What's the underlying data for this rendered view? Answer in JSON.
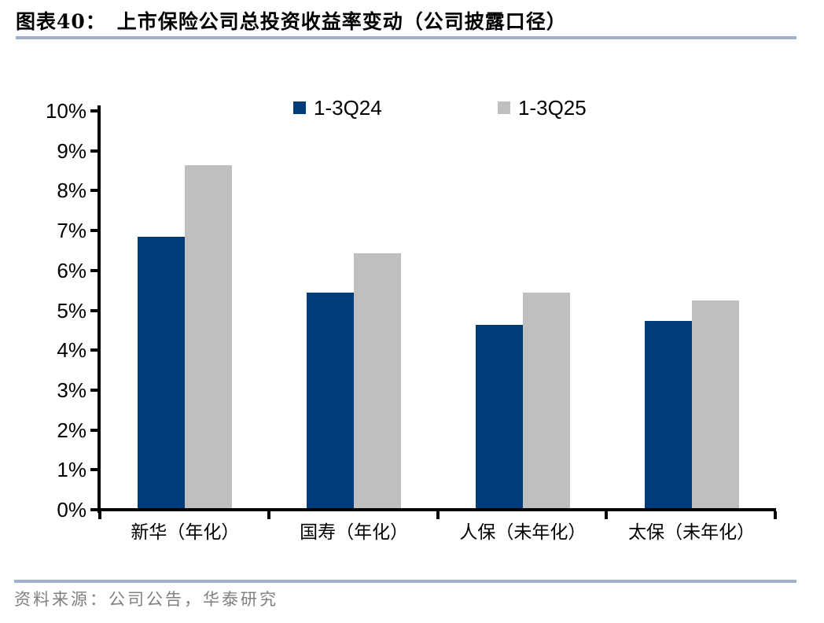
{
  "header": {
    "fig_label": "图表40：",
    "title": "上市保险公司总投资收益率变动（公司披露口径）"
  },
  "footer": {
    "source": "资料来源：公司公告，华泰研究"
  },
  "colors": {
    "series_1": "#003B7A",
    "series_2": "#BFBFBF",
    "divider": "#9FB2C9",
    "axis": "#000000",
    "source_text": "#808080"
  },
  "chart_data": {
    "type": "bar",
    "title": "上市保险公司总投资收益率变动（公司披露口径）",
    "categories": [
      "新华（年化）",
      "国寿（年化）",
      "人保（未年化）",
      "太保（未年化）"
    ],
    "series": [
      {
        "name": "1-3Q24",
        "color": "#003B7A",
        "values": [
          6.8,
          5.4,
          4.6,
          4.7
        ]
      },
      {
        "name": "1-3Q25",
        "color": "#BFBFBF",
        "values": [
          8.6,
          6.4,
          5.4,
          5.2
        ]
      }
    ],
    "xlabel": "",
    "ylabel": "",
    "ylim": [
      0,
      10
    ],
    "ytick_step": 1,
    "ytick_suffix": "%",
    "grid": false,
    "legend_position": "top-center"
  }
}
